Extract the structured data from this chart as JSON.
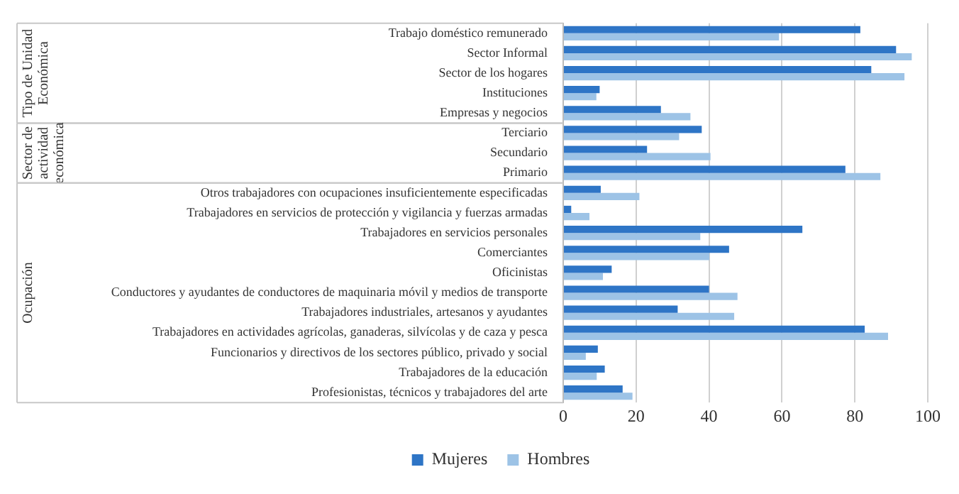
{
  "chart_data": {
    "type": "bar",
    "orientation": "horizontal",
    "categories": [
      "Trabajo doméstico remunerado",
      "Sector Informal",
      "Sector de los hogares",
      "Instituciones",
      "Empresas y negocios",
      "Terciario",
      "Secundario",
      "Primario",
      "Otros trabajadores con ocupaciones insuficientemente especificadas",
      "Trabajadores en servicios de protección y vigilancia y fuerzas armadas",
      "Trabajadores en servicios personales",
      "Comerciantes",
      "Oficinistas",
      "Conductores y ayudantes de conductores de maquinaria móvil y medios de transporte",
      "Trabajadores industriales, artesanos y ayudantes",
      "Trabajadores en actividades agrícolas, ganaderas, silvícolas y de caza y pesca",
      "Funcionarios y directivos de los sectores público, privado y social",
      "Trabajadores de la educación",
      "Profesionistas, técnicos y trabajadores del arte"
    ],
    "series": [
      {
        "name": "Mujeres",
        "color": "#2e75c6",
        "values": [
          81.5,
          91.3,
          84.5,
          10,
          26.8,
          38,
          23,
          77.4,
          10.3,
          2.2,
          65.6,
          45.5,
          13.3,
          40,
          31.4,
          82.7,
          9.5,
          11.4,
          16.3
        ]
      },
      {
        "name": "Hombres",
        "color": "#9dc3e6",
        "values": [
          59.2,
          95.6,
          93.6,
          9.1,
          34.9,
          31.8,
          40.4,
          87,
          20.9,
          7.2,
          37.6,
          40.1,
          10.9,
          47.8,
          46.9,
          89.1,
          6.2,
          9.2,
          19
        ]
      }
    ],
    "annotations": [
      "Tipo de Unidad Económica",
      "Sector de actividad económica",
      "Ocupación"
    ],
    "xlim": [
      0,
      100
    ],
    "xticks": [
      0,
      20,
      40,
      60,
      80,
      100
    ],
    "grid": "x",
    "legend": "bottom"
  }
}
